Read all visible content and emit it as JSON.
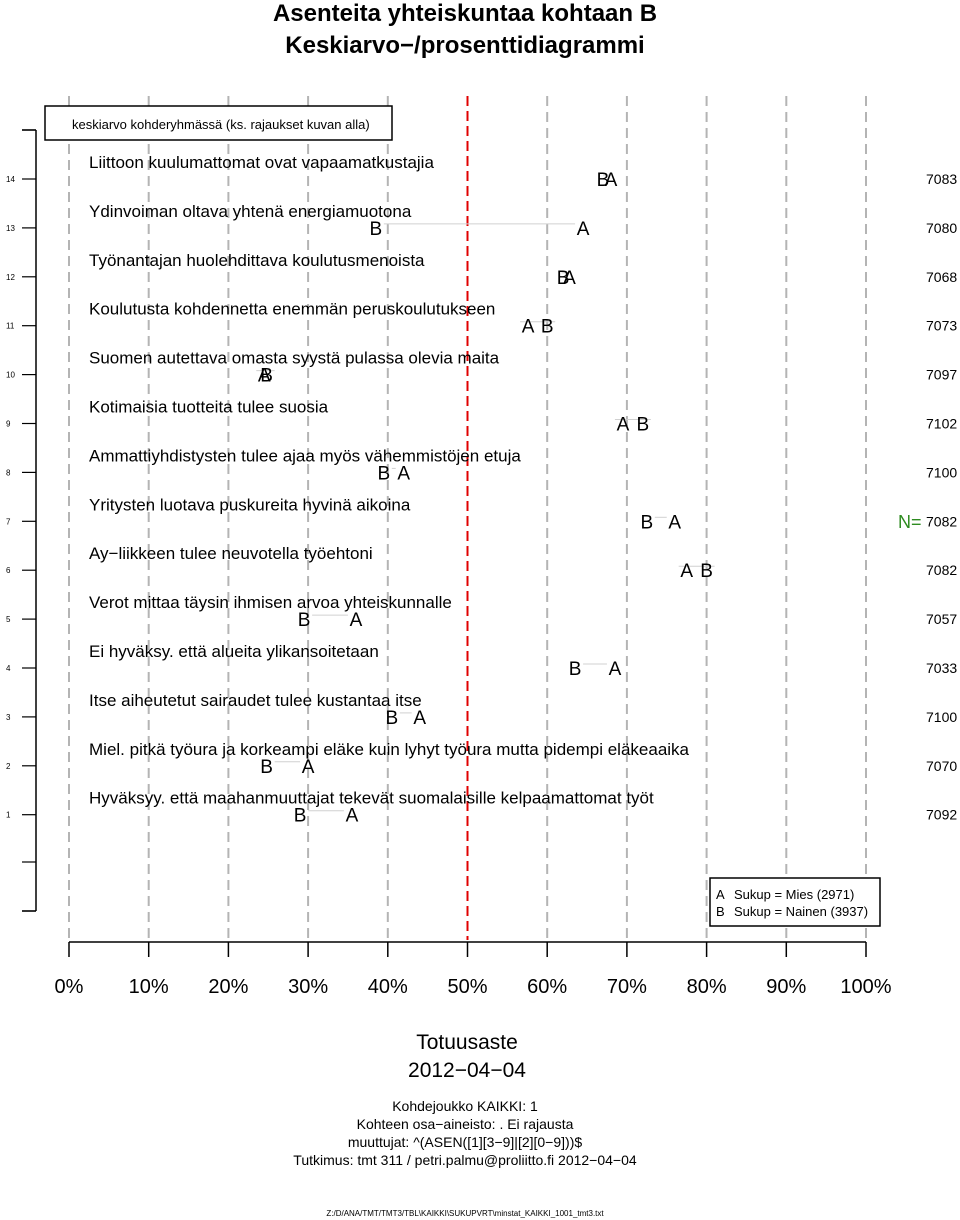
{
  "title_line1": "Asenteita yhteiskuntaa kohtaan B",
  "title_line2": "Keskiarvo−/prosenttidiagrammi",
  "legend_top": "keskiarvo kohderyhmässä (ks. rajaukset kuvan alla)",
  "n_label": "N=",
  "chart_data": {
    "type": "scatter",
    "xlabel": "Totuusaste",
    "xlim": [
      0,
      100
    ],
    "x_ticks": [
      "0%",
      "10%",
      "20%",
      "30%",
      "40%",
      "50%",
      "60%",
      "70%",
      "80%",
      "90%",
      "100%"
    ],
    "reference_line_x": 50,
    "grid": true,
    "legend_position": "bottom-right",
    "series": [
      {
        "key": "A",
        "name": "Sukup = Mies (2971)"
      },
      {
        "key": "B",
        "name": "Sukup = Nainen (3937)"
      }
    ],
    "rows": [
      {
        "index": "14",
        "label": "Liittoon kuulumattomat ovat vapaamatkustajia",
        "A": 68.0,
        "B": 67.0,
        "n": "7083"
      },
      {
        "index": "13",
        "label": "Ydinvoiman oltava yhtenä energiamuotona",
        "A": 64.5,
        "B": 38.5,
        "n": "7080"
      },
      {
        "index": "12",
        "label": "Työnantajan huolehdittava koulutusmenoista",
        "A": 62.8,
        "B": 62.0,
        "n": "7068"
      },
      {
        "index": "11",
        "label": "Koulutusta kohdennetta enemmän peruskoulutukseen",
        "A": 57.6,
        "B": 60.0,
        "n": "7073"
      },
      {
        "index": "10",
        "label": "Suomen autettava omasta syystä pulassa olevia maita",
        "A": 24.5,
        "B": 24.8,
        "n": "7097"
      },
      {
        "index": "9",
        "label": "Kotimaisia tuotteita tulee suosia",
        "A": 69.5,
        "B": 72.0,
        "n": "7102"
      },
      {
        "index": "8",
        "label": "Ammattiyhdistysten tulee ajaa myös vähemmistöjen etuja",
        "A": 42.0,
        "B": 39.5,
        "n": "7100"
      },
      {
        "index": "7",
        "label": "Yritysten luotava puskureita hyvinä aikoina",
        "A": 76.0,
        "B": 72.5,
        "n": "7082"
      },
      {
        "index": "6",
        "label": "Ay−liikkeen tulee neuvotella työehtoni",
        "A": 77.5,
        "B": 80.0,
        "n": "7082"
      },
      {
        "index": "5",
        "label": "Verot mittaa täysin ihmisen arvoa yhteiskunnalle",
        "A": 36.0,
        "B": 29.5,
        "n": "7057"
      },
      {
        "index": "4",
        "label": "Ei hyväksy. että alueita ylikansoitetaan",
        "A": 68.5,
        "B": 63.5,
        "n": "7033"
      },
      {
        "index": "3",
        "label": "Itse aiheutetut sairaudet tulee kustantaa itse",
        "A": 44.0,
        "B": 40.5,
        "n": "7100"
      },
      {
        "index": "2",
        "label": "Miel. pitkä työura ja korkeampi eläke kuin lyhyt työura mutta pidempi eläkeaaika",
        "A": 30.0,
        "B": 24.8,
        "n": "7070"
      },
      {
        "index": "1",
        "label": "Hyväksyy. että maahanmuuttajat tekevät suomalaisille kelpaamattomat työt",
        "A": 35.5,
        "B": 29.0,
        "n": "7092"
      }
    ]
  },
  "date": "2012−04−04",
  "footer": [
    "Kohdejoukko KAIKKI: 1",
    "Kohteen osa−aineisto: . Ei rajausta",
    "muuttujat: ^(ASEN([1][3−9]|[2][0−9]))$",
    "Tutkimus: tmt 311 / petri.palmu@proliitto.fi 2012−04−04"
  ],
  "file_path": "Z:/D/ANA/TMT/TMT3/TBL\\KAIKKI\\SUKUPVRT\\minstat_KAIKKI_1001_tmt3.txt"
}
